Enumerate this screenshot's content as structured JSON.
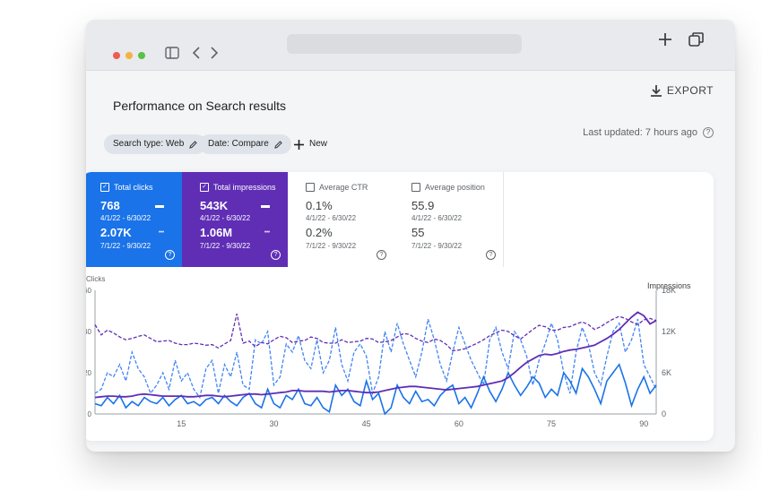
{
  "toolbar": {
    "export_label": "EXPORT",
    "export_icon": "download-icon"
  },
  "page_title": "Performance on Search results",
  "filters": {
    "search_type": "Search type: Web",
    "date": "Date: Compare",
    "new_label": "New"
  },
  "last_updated": "Last updated: 7 hours ago",
  "cards": [
    {
      "label": "Total clicks",
      "v1": "768",
      "r1": "4/1/22 - 6/30/22",
      "v2": "2.07K",
      "r2": "7/1/22 - 9/30/22"
    },
    {
      "label": "Total impressions",
      "v1": "543K",
      "r1": "4/1/22 - 6/30/22",
      "v2": "1.06M",
      "r2": "7/1/22 - 9/30/22"
    },
    {
      "label": "Average CTR",
      "v1": "0.1%",
      "r1": "4/1/22 - 6/30/22",
      "v2": "0.2%",
      "r2": "7/1/22 - 9/30/22"
    },
    {
      "label": "Average position",
      "v1": "55.9",
      "r1": "4/1/22 - 6/30/22",
      "v2": "55",
      "r2": "7/1/22 - 9/30/22"
    }
  ],
  "colors": {
    "clicks": "#1a73e8",
    "impressions": "#5f2eb5"
  },
  "chart_data": {
    "type": "line",
    "ylabel": "Clicks",
    "y2label": "Impressions",
    "x_ticks": [
      15,
      30,
      45,
      60,
      75,
      90
    ],
    "xlim": [
      1,
      92
    ],
    "y_ticks": [
      0,
      20,
      40,
      60
    ],
    "ylim": [
      0,
      60
    ],
    "y2_ticks": [
      "0",
      "6K",
      "12K",
      "18K"
    ],
    "y2lim": [
      0,
      18000
    ],
    "clicks_current": [
      5,
      4,
      8,
      5,
      9,
      3,
      6,
      4,
      8,
      6,
      5,
      8,
      4,
      7,
      9,
      5,
      6,
      4,
      7,
      8,
      5,
      9,
      6,
      4,
      8,
      10,
      5,
      3,
      12,
      5,
      3,
      9,
      7,
      12,
      5,
      4,
      8,
      3,
      1,
      14,
      9,
      12,
      6,
      4,
      16,
      7,
      10,
      0,
      3,
      14,
      8,
      5,
      11,
      6,
      7,
      4,
      9,
      12,
      14,
      5,
      8,
      3,
      10,
      18,
      11,
      6,
      12,
      20,
      14,
      9,
      13,
      18,
      15,
      8,
      12,
      9,
      20,
      16,
      10,
      22,
      18,
      12,
      5,
      16,
      20,
      24,
      15,
      4,
      12,
      18,
      10,
      14
    ],
    "clicks_previous": [
      10,
      12,
      20,
      18,
      24,
      16,
      30,
      22,
      18,
      10,
      14,
      20,
      12,
      26,
      16,
      20,
      12,
      8,
      22,
      26,
      10,
      24,
      18,
      30,
      14,
      12,
      36,
      34,
      40,
      14,
      18,
      34,
      30,
      38,
      26,
      22,
      36,
      20,
      26,
      42,
      24,
      16,
      30,
      34,
      28,
      10,
      18,
      40,
      30,
      44,
      34,
      26,
      18,
      30,
      46,
      36,
      24,
      16,
      30,
      42,
      34,
      26,
      20,
      14,
      36,
      42,
      30,
      22,
      40,
      36,
      28,
      14,
      26,
      34,
      44,
      36,
      20,
      10,
      30,
      42,
      34,
      20,
      14,
      28,
      40,
      44,
      30,
      36,
      46,
      24,
      18,
      12
    ],
    "impressions_current": [
      2400,
      2500,
      2600,
      2600,
      2500,
      2500,
      2600,
      2800,
      2900,
      2800,
      2700,
      2600,
      2600,
      2600,
      2600,
      2500,
      2500,
      2600,
      2700,
      2700,
      2600,
      2500,
      2600,
      2700,
      2800,
      2900,
      2900,
      2800,
      2900,
      3000,
      3100,
      3200,
      3400,
      3400,
      3300,
      3300,
      3300,
      3300,
      3200,
      3300,
      3400,
      3400,
      3300,
      3200,
      3100,
      3100,
      3200,
      3400,
      3600,
      3800,
      3900,
      4000,
      4000,
      3900,
      3800,
      3700,
      3600,
      3500,
      3600,
      3700,
      3800,
      3900,
      4000,
      4200,
      4400,
      4600,
      4800,
      5300,
      6000,
      6800,
      7500,
      8000,
      8500,
      8700,
      8600,
      8800,
      9100,
      9300,
      9400,
      9600,
      9800,
      10000,
      10500,
      11000,
      11600,
      12300,
      13200,
      14100,
      14800,
      14300,
      13100,
      13600
    ],
    "impressions_previous": [
      13000,
      11500,
      12200,
      11800,
      11200,
      10800,
      11000,
      11300,
      11500,
      11000,
      10500,
      10600,
      10700,
      10300,
      10100,
      10100,
      10300,
      10200,
      10000,
      10100,
      9600,
      10200,
      10700,
      14600,
      10300,
      10600,
      9800,
      10400,
      10200,
      10800,
      11300,
      11100,
      10400,
      10600,
      10700,
      11200,
      11000,
      10400,
      10300,
      10300,
      10800,
      10400,
      10500,
      10600,
      11000,
      10900,
      10400,
      10500,
      10700,
      11200,
      11700,
      11600,
      11000,
      10600,
      10400,
      10900,
      10700,
      10100,
      9200,
      9300,
      9500,
      9900,
      10300,
      10800,
      11400,
      11800,
      12200,
      12000,
      11400,
      10900,
      11600,
      12300,
      12900,
      12700,
      12200,
      12200,
      12600,
      12700,
      13100,
      13400,
      13000,
      12300,
      12700,
      13300,
      13800,
      14200,
      13900,
      13400,
      13000,
      13700,
      13900,
      13600
    ]
  }
}
